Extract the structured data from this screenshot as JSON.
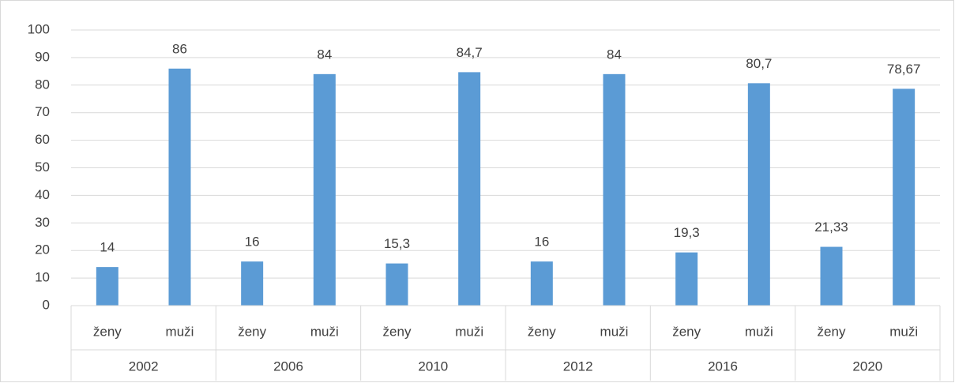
{
  "chart_data": {
    "type": "bar",
    "categories": [
      "ženy",
      "muži",
      "ženy",
      "muži",
      "ženy",
      "muži",
      "ženy",
      "muži",
      "ženy",
      "muži",
      "ženy",
      "muži"
    ],
    "groups": [
      "2002",
      "2006",
      "2010",
      "2012",
      "2016",
      "2020"
    ],
    "values": [
      14,
      86,
      16,
      84,
      15.3,
      84.7,
      16,
      84,
      19.3,
      80.7,
      21.33,
      78.67
    ],
    "value_labels": [
      "14",
      "86",
      "16",
      "84",
      "15,3",
      "84,7",
      "16",
      "84",
      "19,3",
      "80,7",
      "21,33",
      "78,67"
    ],
    "color": "#5b9bd5",
    "ylim": [
      0,
      100
    ],
    "yticks": [
      0,
      10,
      20,
      30,
      40,
      50,
      60,
      70,
      80,
      90,
      100
    ],
    "grid": true
  }
}
